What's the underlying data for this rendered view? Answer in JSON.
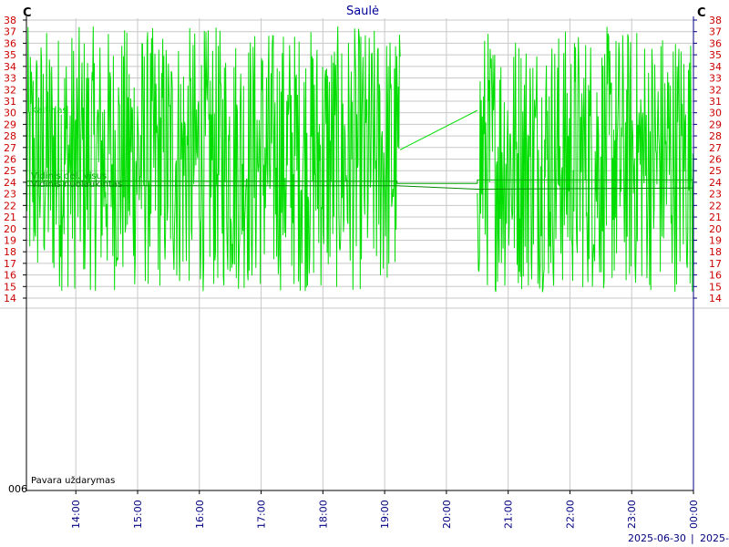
{
  "chart_data": {
    "type": "line",
    "title": "Saulė",
    "unit_left": "C",
    "unit_right": "C",
    "y_ticks": [
      38,
      37,
      36,
      35,
      34,
      33,
      32,
      31,
      30,
      29,
      28,
      27,
      26,
      25,
      24,
      23,
      22,
      21,
      20,
      19,
      18,
      17,
      16,
      15,
      14
    ],
    "ylim": [
      14,
      38
    ],
    "xlim": [
      13.2,
      24.0
    ],
    "x_tick_labels": [
      {
        "t": 14,
        "label": "14:00"
      },
      {
        "t": 15,
        "label": "15:00"
      },
      {
        "t": 16,
        "label": "16:00"
      },
      {
        "t": 17,
        "label": "17:00"
      },
      {
        "t": 18,
        "label": "18:00"
      },
      {
        "t": 19,
        "label": "19:00"
      },
      {
        "t": 20,
        "label": "20:00"
      },
      {
        "t": 21,
        "label": "21:00"
      },
      {
        "t": 22,
        "label": "22:00"
      },
      {
        "t": 23,
        "label": "23:00"
      },
      {
        "t": 24,
        "label": "00:00"
      }
    ],
    "series": [
      {
        "name": "Kaitinas",
        "color": "#00dd00",
        "style": "noisy",
        "range": [
          14,
          38
        ],
        "segments": [
          [
            13.2,
            19.25
          ],
          [
            20.5,
            24.0
          ]
        ],
        "gap_line": [
          [
            19.25,
            26.8
          ],
          [
            20.5,
            30.2
          ]
        ]
      },
      {
        "name": "Vidinis dėl. visus",
        "color": "#00aa00",
        "values": [
          [
            13.2,
            24.1
          ],
          [
            19.2,
            24.1
          ],
          [
            19.2,
            23.9
          ],
          [
            20.5,
            23.9
          ],
          [
            20.5,
            24.2
          ],
          [
            24.0,
            24.2
          ]
        ]
      },
      {
        "name": "Vidinis nuolaukintas",
        "color": "#008800",
        "values": [
          [
            13.2,
            23.7
          ],
          [
            19.2,
            23.7
          ],
          [
            20.5,
            23.4
          ],
          [
            24.0,
            23.5
          ]
        ]
      }
    ],
    "lower_panel": {
      "label": "Pavara uždarymas",
      "axis_label": "006"
    },
    "bottom_dates": [
      "2025-06-30",
      "|",
      "2025-"
    ],
    "grid": true,
    "colors": {
      "axis_text": "#cc0000",
      "time_text": "#000080",
      "title": "#000099",
      "grid": "#c8c8c8",
      "right_axis": "#000080"
    }
  }
}
